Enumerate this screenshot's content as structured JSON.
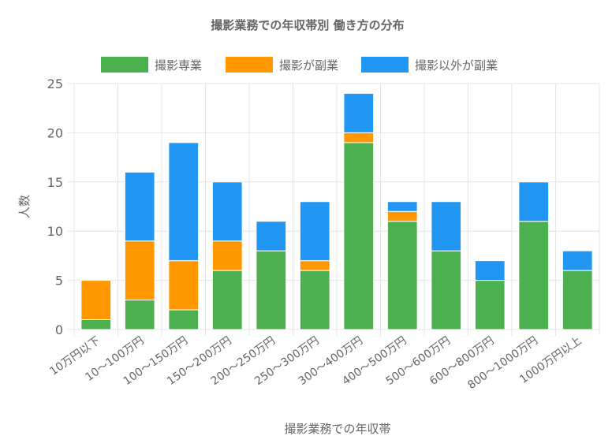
{
  "chart_data": {
    "type": "bar",
    "stacked": true,
    "title": "撮影業務での年収帯別 働き方の分布",
    "xlabel": "撮影業務での年収帯",
    "ylabel": "人数",
    "ylim": [
      0,
      25
    ],
    "yticks": [
      0,
      5,
      10,
      15,
      20,
      25
    ],
    "grid": true,
    "legend_position": "top",
    "categories": [
      "10万円以下",
      "10〜100万円",
      "100〜150万円",
      "150〜200万円",
      "200〜250万円",
      "250〜300万円",
      "300〜400万円",
      "400〜500万円",
      "500〜600万円",
      "600〜800万円",
      "800〜1000万円",
      "1000万円以上"
    ],
    "series": [
      {
        "name": "撮影専業",
        "color": "#4caf50",
        "values": [
          1,
          3,
          2,
          6,
          8,
          6,
          19,
          11,
          8,
          5,
          11,
          6
        ]
      },
      {
        "name": "撮影が副業",
        "color": "#ff9800",
        "values": [
          4,
          6,
          5,
          3,
          0,
          1,
          1,
          1,
          0,
          0,
          0,
          0
        ]
      },
      {
        "name": "撮影以外が副業",
        "color": "#2196f3",
        "values": [
          0,
          7,
          12,
          6,
          3,
          6,
          4,
          1,
          5,
          2,
          4,
          2
        ]
      }
    ]
  }
}
